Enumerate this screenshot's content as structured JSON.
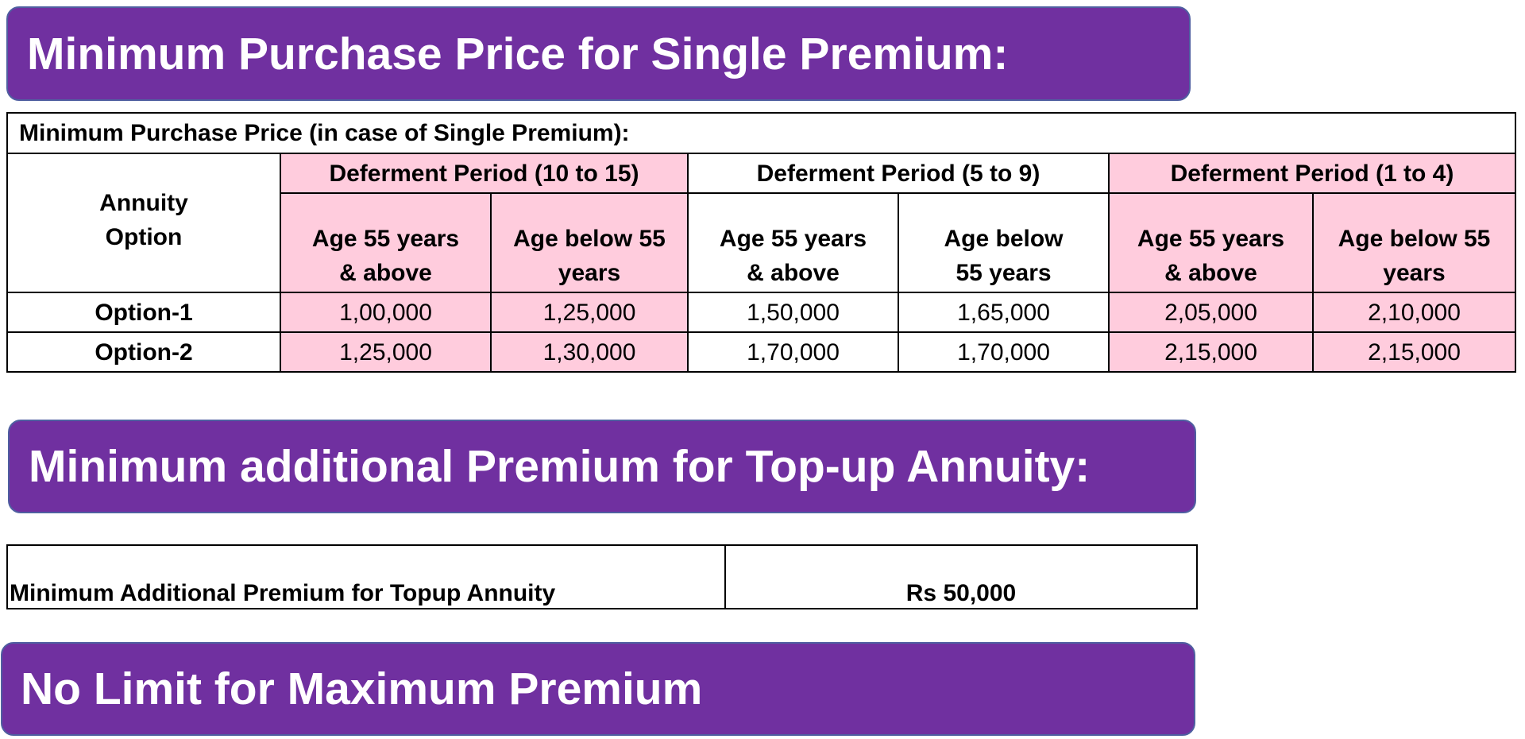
{
  "banners": {
    "single_premium": "Minimum Purchase Price for Single Premium:",
    "topup": "Minimum additional Premium for Top-up Annuity:",
    "max_premium": "No Limit for Maximum Premium"
  },
  "price_table": {
    "caption": "Minimum Purchase Price (in case of Single Premium):",
    "option_header": "Annuity Option",
    "periods": [
      "Deferment Period (10 to 15)",
      "Deferment Period (5 to 9)",
      "Deferment Period (1 to 4)"
    ],
    "age_headers": [
      "Age 55 years & above",
      "Age below 55 years",
      "Age 55 years & above",
      "Age below 55 years",
      "Age 55 years & above",
      "Age below 55 years"
    ],
    "rows": [
      {
        "option": "Option-1",
        "values": [
          "1,00,000",
          "1,25,000",
          "1,50,000",
          "1,65,000",
          "2,05,000",
          "2,10,000"
        ]
      },
      {
        "option": "Option-2",
        "values": [
          "1,25,000",
          "1,30,000",
          "1,70,000",
          "1,70,000",
          "2,15,000",
          "2,15,000"
        ]
      }
    ]
  },
  "topup_table": {
    "label": "Minimum Additional Premium for Topup Annuity",
    "value": "Rs 50,000"
  },
  "colors": {
    "banner_bg": "#7030a0",
    "banner_text": "#ffffff",
    "highlight_pink": "#ffccdd"
  }
}
